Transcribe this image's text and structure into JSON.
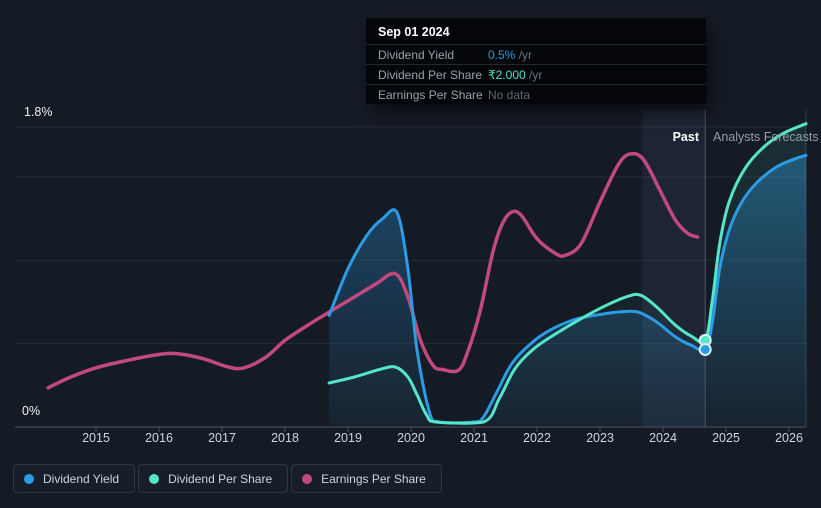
{
  "tooltip": {
    "date": "Sep 01 2024",
    "rows": [
      {
        "label": "Dividend Yield",
        "value": "0.5%",
        "suffix": " /yr",
        "value_color": "#1f9de9"
      },
      {
        "label": "Dividend Per Share",
        "value": "₹2.000",
        "suffix": " /yr",
        "value_color": "#49e3c6"
      },
      {
        "label": "Earnings Per Share",
        "value": "No data",
        "suffix": "",
        "value_color": "#5d6773"
      }
    ]
  },
  "annotations": {
    "past": "Past",
    "forecast": "Analysts Forecasts"
  },
  "y_axis": {
    "top_label": "1.8%",
    "bottom_label": "0%"
  },
  "x_axis": {
    "labels": [
      "2015",
      "2016",
      "2017",
      "2018",
      "2019",
      "2020",
      "2021",
      "2022",
      "2023",
      "2024",
      "2025",
      "2026"
    ]
  },
  "legend": [
    {
      "label": "Dividend Yield",
      "color": "#2b9be5"
    },
    {
      "label": "Dividend Per Share",
      "color": "#55e5c8"
    },
    {
      "label": "Earnings Per Share",
      "color": "#c2497f"
    }
  ],
  "colors": {
    "background": "#151b25",
    "grid": "rgba(255,255,255,0.07)",
    "axis": "#3c4451",
    "tick": "#4a525f",
    "divider": "#4d5766",
    "plot_right_edge": "#39424e",
    "highlight_band": "rgba(126,172,224,0.08)",
    "marker_ring": "#ddeefb"
  },
  "chart_data": {
    "type": "line",
    "title": "Dividend history and forecast (hover: Sep 01 2024 — Dividend Yield 0.5%/yr, Dividend Per Share ₹2.000/yr, Earnings Per Share no data)",
    "x_unit": "year (fractional)",
    "x_range": [
      2014.2,
      2026.27
    ],
    "ylim": [
      0,
      1.8
    ],
    "y_gridlines": [
      0.5,
      1.0,
      1.5,
      1.8
    ],
    "y_unit": "dividend yield % axis; Dividend Per Share and Earnings Per Share are drawn on the same visual 0–1.8 scale",
    "divider_year": 2024.67,
    "highlight_band": {
      "from": 2023.67,
      "to": 2024.67
    },
    "legend_position": "bottom-left",
    "grid": true,
    "series": [
      {
        "name": "Earnings Per Share",
        "color": "#c2497f",
        "fill": "none",
        "line_width": 3.5,
        "points": [
          [
            2014.24,
            0.235
          ],
          [
            2014.6,
            0.3
          ],
          [
            2015.0,
            0.355
          ],
          [
            2015.5,
            0.4
          ],
          [
            2016.0,
            0.435
          ],
          [
            2016.3,
            0.44
          ],
          [
            2016.7,
            0.41
          ],
          [
            2017.1,
            0.36
          ],
          [
            2017.35,
            0.355
          ],
          [
            2017.7,
            0.42
          ],
          [
            2018.0,
            0.52
          ],
          [
            2018.4,
            0.62
          ],
          [
            2018.75,
            0.7
          ],
          [
            2019.1,
            0.78
          ],
          [
            2019.45,
            0.86
          ],
          [
            2019.75,
            0.92
          ],
          [
            2019.95,
            0.78
          ],
          [
            2020.15,
            0.52
          ],
          [
            2020.35,
            0.37
          ],
          [
            2020.5,
            0.345
          ],
          [
            2020.75,
            0.34
          ],
          [
            2020.9,
            0.45
          ],
          [
            2021.1,
            0.7
          ],
          [
            2021.3,
            1.05
          ],
          [
            2021.45,
            1.22
          ],
          [
            2021.6,
            1.29
          ],
          [
            2021.75,
            1.27
          ],
          [
            2022.0,
            1.13
          ],
          [
            2022.3,
            1.04
          ],
          [
            2022.45,
            1.03
          ],
          [
            2022.7,
            1.1
          ],
          [
            2023.0,
            1.35
          ],
          [
            2023.3,
            1.58
          ],
          [
            2023.5,
            1.64
          ],
          [
            2023.7,
            1.6
          ],
          [
            2023.95,
            1.42
          ],
          [
            2024.2,
            1.24
          ],
          [
            2024.4,
            1.16
          ],
          [
            2024.55,
            1.14
          ]
        ]
      },
      {
        "name": "Dividend Yield",
        "color": "#2b9be5",
        "fill": "gradient",
        "line_width": 3,
        "points": [
          [
            2018.7,
            0.67
          ],
          [
            2019.0,
            0.95
          ],
          [
            2019.3,
            1.15
          ],
          [
            2019.55,
            1.25
          ],
          [
            2019.78,
            1.285
          ],
          [
            2019.95,
            0.95
          ],
          [
            2020.1,
            0.45
          ],
          [
            2020.3,
            0.08
          ],
          [
            2020.45,
            0.03
          ],
          [
            2021.0,
            0.03
          ],
          [
            2021.15,
            0.06
          ],
          [
            2021.35,
            0.2
          ],
          [
            2021.6,
            0.38
          ],
          [
            2021.9,
            0.5
          ],
          [
            2022.2,
            0.58
          ],
          [
            2022.6,
            0.645
          ],
          [
            2023.0,
            0.675
          ],
          [
            2023.3,
            0.69
          ],
          [
            2023.6,
            0.69
          ],
          [
            2023.9,
            0.63
          ],
          [
            2024.2,
            0.54
          ],
          [
            2024.45,
            0.49
          ],
          [
            2024.67,
            0.465
          ],
          [
            2024.78,
            0.62
          ],
          [
            2024.9,
            0.95
          ],
          [
            2025.05,
            1.18
          ],
          [
            2025.25,
            1.35
          ],
          [
            2025.5,
            1.47
          ],
          [
            2025.8,
            1.56
          ],
          [
            2026.1,
            1.61
          ],
          [
            2026.27,
            1.63
          ]
        ]
      },
      {
        "name": "Dividend Per Share",
        "color": "#55e5c8",
        "fill": "subtle",
        "line_width": 3,
        "points": [
          [
            2018.7,
            0.264
          ],
          [
            2019.1,
            0.3
          ],
          [
            2019.5,
            0.345
          ],
          [
            2019.75,
            0.36
          ],
          [
            2019.95,
            0.3
          ],
          [
            2020.1,
            0.19
          ],
          [
            2020.25,
            0.07
          ],
          [
            2020.4,
            0.03
          ],
          [
            2021.15,
            0.03
          ],
          [
            2021.4,
            0.17
          ],
          [
            2021.65,
            0.35
          ],
          [
            2021.95,
            0.47
          ],
          [
            2022.3,
            0.56
          ],
          [
            2022.7,
            0.65
          ],
          [
            2023.1,
            0.73
          ],
          [
            2023.45,
            0.785
          ],
          [
            2023.65,
            0.79
          ],
          [
            2023.9,
            0.72
          ],
          [
            2024.2,
            0.61
          ],
          [
            2024.45,
            0.545
          ],
          [
            2024.67,
            0.52
          ],
          [
            2024.78,
            0.75
          ],
          [
            2024.9,
            1.1
          ],
          [
            2025.05,
            1.35
          ],
          [
            2025.3,
            1.55
          ],
          [
            2025.6,
            1.68
          ],
          [
            2025.9,
            1.76
          ],
          [
            2026.27,
            1.82
          ]
        ]
      }
    ],
    "markers": [
      {
        "series": "Dividend Per Share",
        "year": 2024.67,
        "value": 0.52,
        "color": "#55e5c8"
      },
      {
        "series": "Dividend Yield",
        "year": 2024.67,
        "value": 0.465,
        "color": "#2b9be5"
      }
    ]
  }
}
